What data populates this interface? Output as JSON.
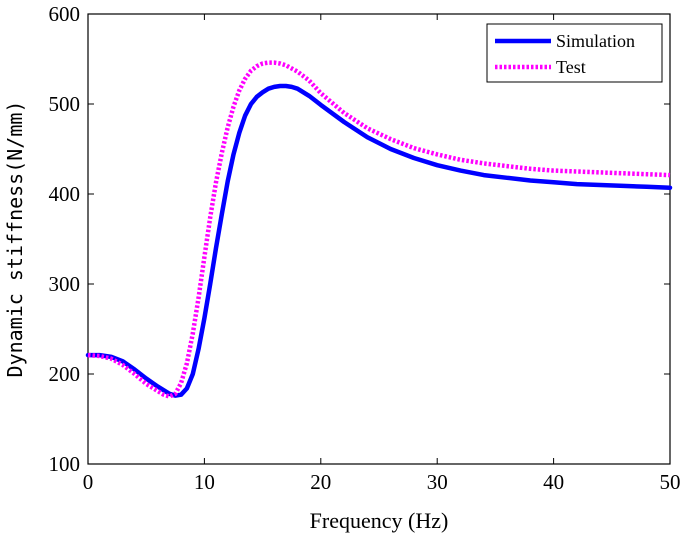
{
  "chart_data": {
    "type": "line",
    "title": "",
    "xlabel": "Frequency (Hz)",
    "ylabel": "Dynamic stiffness(N/mm)",
    "xlim": [
      0,
      50
    ],
    "ylim": [
      100,
      600
    ],
    "xticks": [
      0,
      10,
      20,
      30,
      40,
      50
    ],
    "yticks": [
      100,
      200,
      300,
      400,
      500,
      600
    ],
    "grid": false,
    "legend_position": "top-right",
    "series": [
      {
        "name": "Simulation",
        "color": "#0000ff",
        "style": "solid",
        "x": [
          0,
          1,
          2,
          3,
          4,
          5,
          6,
          7,
          7.5,
          8,
          8.5,
          9,
          9.5,
          10,
          10.5,
          11,
          11.5,
          12,
          12.5,
          13,
          13.5,
          14,
          14.5,
          15,
          15.5,
          16,
          16.5,
          17,
          17.5,
          18,
          19,
          20,
          22,
          24,
          26,
          28,
          30,
          32,
          34,
          36,
          38,
          40,
          42,
          44,
          46,
          48,
          50
        ],
        "y": [
          221,
          221,
          219,
          214,
          205,
          195,
          186,
          178,
          176,
          177,
          184,
          200,
          228,
          262,
          300,
          340,
          378,
          414,
          444,
          468,
          487,
          500,
          508,
          513,
          517,
          519,
          520,
          520,
          519,
          517,
          509,
          499,
          480,
          463,
          450,
          440,
          432,
          426,
          421,
          418,
          415,
          413,
          411,
          410,
          409,
          408,
          407
        ]
      },
      {
        "name": "Test",
        "color": "#ff00ff",
        "style": "dotted",
        "x": [
          0,
          1,
          2,
          3,
          4,
          5,
          6,
          6.5,
          7,
          7.5,
          8,
          8.5,
          9,
          9.5,
          10,
          10.5,
          11,
          11.5,
          12,
          12.5,
          13,
          13.5,
          14,
          14.5,
          15,
          15.5,
          16,
          16.5,
          17,
          18,
          19,
          20,
          22,
          24,
          26,
          28,
          30,
          32,
          34,
          36,
          38,
          40,
          42,
          44,
          46,
          48,
          50
        ],
        "y": [
          221,
          220,
          217,
          210,
          200,
          189,
          181,
          177,
          175,
          178,
          190,
          212,
          245,
          285,
          330,
          374,
          413,
          446,
          474,
          497,
          515,
          528,
          537,
          542,
          545,
          546,
          546,
          545,
          543,
          536,
          526,
          512,
          490,
          473,
          461,
          451,
          444,
          438,
          434,
          431,
          428,
          426,
          425,
          424,
          423,
          422,
          421
        ]
      }
    ]
  }
}
